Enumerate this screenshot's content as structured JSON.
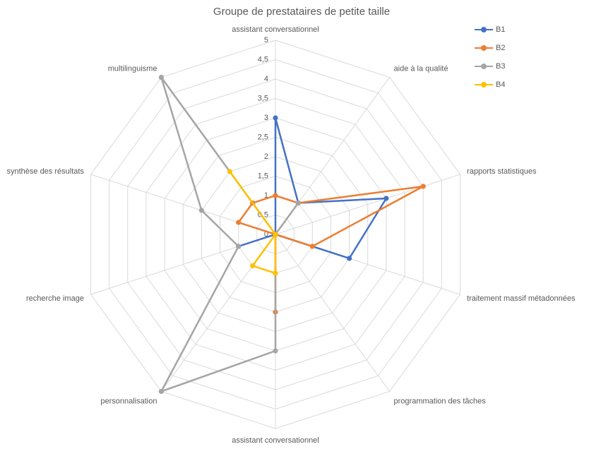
{
  "title": "Groupe de prestataires de petite taille",
  "chart_data": {
    "type": "radar",
    "categories": [
      "assistant conversationnel",
      "aide à la qualité",
      "rapports statistiques",
      "traitement massif métadonnées",
      "programmation des tâches",
      "assistant conversationnel",
      "personnalisation",
      "recherche image",
      "synthèse des résultats",
      "multilinguisme"
    ],
    "series": [
      {
        "name": "B1",
        "color": "#4472C4",
        "values": [
          3,
          1,
          3,
          2,
          0,
          0,
          0,
          1,
          0,
          0
        ]
      },
      {
        "name": "B2",
        "color": "#ED7D31",
        "values": [
          1,
          1,
          4,
          1,
          0,
          2,
          0,
          0,
          1,
          1
        ]
      },
      {
        "name": "B3",
        "color": "#A5A5A5",
        "values": [
          0,
          1,
          0,
          0,
          0,
          3,
          5,
          1,
          2,
          5
        ]
      },
      {
        "name": "B4",
        "color": "#FFC000",
        "values": [
          0,
          0,
          0,
          0,
          0,
          1,
          1,
          0,
          0,
          2
        ]
      }
    ],
    "rmin": 0,
    "rmax": 5,
    "rstep": 0.5,
    "tick_labels": [
      "0",
      "0,5",
      "1",
      "1,5",
      "2",
      "2,5",
      "3",
      "3,5",
      "4",
      "4,5",
      "5"
    ],
    "grid": true,
    "grid_color": "#d9d9d9",
    "label_color": "#595959",
    "legend_position": "top-right"
  }
}
